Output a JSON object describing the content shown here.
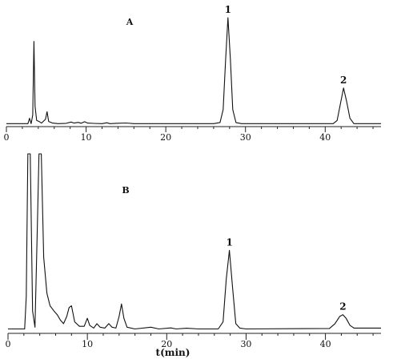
{
  "figure": {
    "xlabel": "t(min)"
  },
  "chart_data": [
    {
      "type": "line",
      "panel_label": "A",
      "xlim": [
        0,
        47
      ],
      "ylim": [
        0,
        100
      ],
      "x_ticks": [
        0,
        10,
        20,
        30,
        40
      ],
      "peaks": [
        {
          "label": "1",
          "t": 27.8,
          "height": 100
        },
        {
          "label": "2",
          "t": 42.3,
          "height": 35
        }
      ],
      "trace": [
        [
          0,
          2
        ],
        [
          2.7,
          2
        ],
        [
          2.9,
          7
        ],
        [
          3.1,
          2
        ],
        [
          3.3,
          10
        ],
        [
          3.45,
          78
        ],
        [
          3.6,
          18
        ],
        [
          3.8,
          5
        ],
        [
          4.1,
          4
        ],
        [
          4.4,
          2.5
        ],
        [
          4.9,
          6
        ],
        [
          5.1,
          13
        ],
        [
          5.3,
          4
        ],
        [
          5.8,
          2.5
        ],
        [
          6.5,
          2
        ],
        [
          7.5,
          2.3
        ],
        [
          8.1,
          3.5
        ],
        [
          8.5,
          2.5
        ],
        [
          9,
          3.2
        ],
        [
          9.4,
          2.4
        ],
        [
          9.8,
          3.8
        ],
        [
          10.2,
          2.5
        ],
        [
          11,
          2.2
        ],
        [
          12,
          2
        ],
        [
          12.6,
          2.8
        ],
        [
          13,
          2
        ],
        [
          14,
          2.4
        ],
        [
          15,
          2.6
        ],
        [
          16,
          2
        ],
        [
          26,
          2
        ],
        [
          26.8,
          3
        ],
        [
          27.2,
          15
        ],
        [
          27.5,
          60
        ],
        [
          27.8,
          100
        ],
        [
          28.1,
          62
        ],
        [
          28.4,
          15
        ],
        [
          28.8,
          3
        ],
        [
          29.5,
          2
        ],
        [
          41,
          2
        ],
        [
          41.5,
          5
        ],
        [
          41.9,
          20
        ],
        [
          42.3,
          35
        ],
        [
          42.7,
          22
        ],
        [
          43.1,
          7
        ],
        [
          43.6,
          2
        ],
        [
          47,
          2
        ]
      ]
    },
    {
      "type": "line",
      "panel_label": "B",
      "xlim": [
        0,
        47
      ],
      "ylim": [
        0,
        100
      ],
      "x_ticks": [
        0,
        10,
        20,
        30,
        40
      ],
      "peaks": [
        {
          "label": "1",
          "t": 27.9,
          "height": 46
        },
        {
          "label": "2",
          "t": 42.2,
          "height": 10
        }
      ],
      "trace": [
        [
          0,
          2
        ],
        [
          2.1,
          2
        ],
        [
          2.3,
          20
        ],
        [
          2.5,
          100
        ],
        [
          2.8,
          100
        ],
        [
          3.1,
          12
        ],
        [
          3.4,
          3
        ],
        [
          3.7,
          60
        ],
        [
          3.9,
          100
        ],
        [
          4.2,
          100
        ],
        [
          4.5,
          42
        ],
        [
          4.9,
          22
        ],
        [
          5.3,
          15
        ],
        [
          5.8,
          12
        ],
        [
          6.2,
          10
        ],
        [
          6.6,
          7
        ],
        [
          7,
          5
        ],
        [
          7.4,
          9
        ],
        [
          7.7,
          14
        ],
        [
          8,
          15
        ],
        [
          8.4,
          6
        ],
        [
          9,
          3.5
        ],
        [
          9.6,
          3.5
        ],
        [
          10,
          8
        ],
        [
          10.3,
          4
        ],
        [
          10.8,
          2.5
        ],
        [
          11.2,
          5
        ],
        [
          11.6,
          3
        ],
        [
          12.2,
          2.5
        ],
        [
          12.7,
          5
        ],
        [
          13.1,
          3
        ],
        [
          13.6,
          2.5
        ],
        [
          14,
          9
        ],
        [
          14.3,
          16
        ],
        [
          14.6,
          8
        ],
        [
          15,
          3
        ],
        [
          16,
          2
        ],
        [
          18,
          3
        ],
        [
          19,
          2
        ],
        [
          20.5,
          2.6
        ],
        [
          21.2,
          2
        ],
        [
          22.5,
          2.4
        ],
        [
          24,
          2
        ],
        [
          26.5,
          2
        ],
        [
          27.1,
          6
        ],
        [
          27.5,
          30
        ],
        [
          27.9,
          46
        ],
        [
          28.3,
          25
        ],
        [
          28.7,
          5
        ],
        [
          29.2,
          2.5
        ],
        [
          30,
          2
        ],
        [
          40.5,
          2.3
        ],
        [
          41.2,
          5
        ],
        [
          41.8,
          9
        ],
        [
          42.2,
          10
        ],
        [
          42.6,
          8
        ],
        [
          43.1,
          4
        ],
        [
          43.6,
          2.5
        ],
        [
          47,
          2.5
        ]
      ]
    }
  ]
}
